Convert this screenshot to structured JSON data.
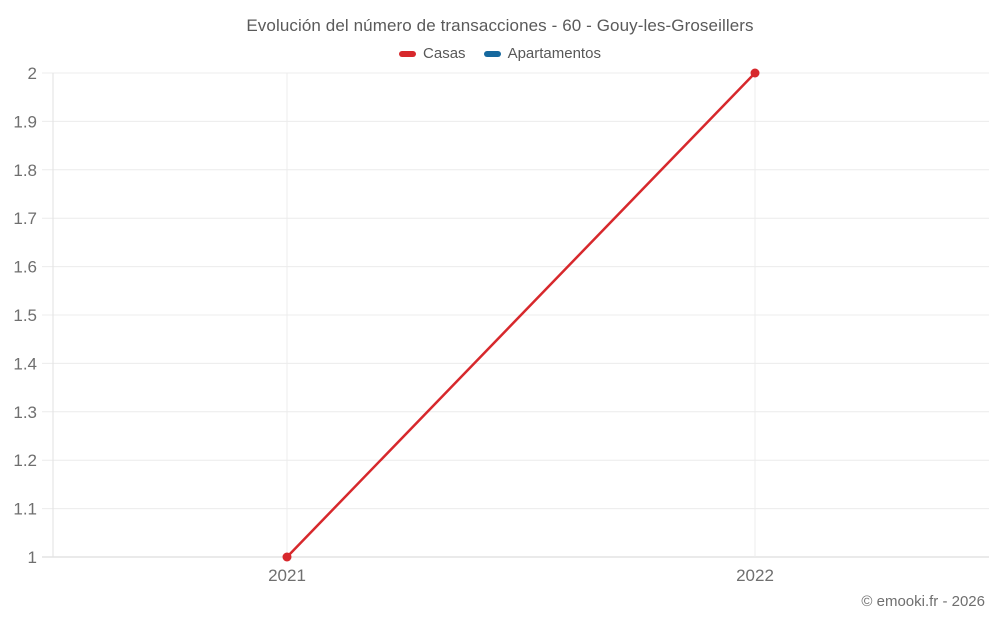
{
  "footer": "© emooki.fr - 2026",
  "chart_data": {
    "type": "line",
    "title": "Evolución del número de transacciones - 60 - Gouy-les-Groseillers",
    "categories": [
      "2021",
      "2022"
    ],
    "series": [
      {
        "name": "Casas",
        "color": "#d7282c",
        "values": [
          1,
          2
        ]
      },
      {
        "name": "Apartamentos",
        "color": "#16689e",
        "values": []
      }
    ],
    "ylim": [
      1,
      2
    ],
    "yticks": [
      "1",
      "1.1",
      "1.2",
      "1.3",
      "1.4",
      "1.5",
      "1.6",
      "1.7",
      "1.8",
      "1.9",
      "2"
    ],
    "xlabel": "",
    "ylabel": "",
    "grid": true,
    "legend_position": "top",
    "axis_colors": {
      "gridline": "#ececec",
      "y_axis_line": "#e2e2e2",
      "x_axis_line": "#d6d6d6",
      "tick_label": "#6f6f6f"
    }
  }
}
